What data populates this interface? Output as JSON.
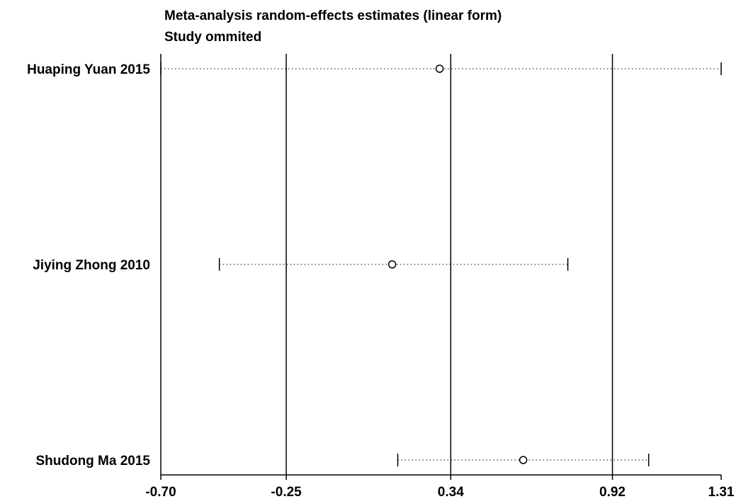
{
  "chart_data": {
    "type": "forest",
    "title": "Meta-analysis random-effects estimates (linear form)",
    "subtitle": "Study ommited",
    "xlim": [
      -0.7,
      1.31
    ],
    "x_ticks": [
      -0.7,
      -0.25,
      0.34,
      0.92,
      1.31
    ],
    "x_tick_labels": [
      "-0.70",
      "-0.25",
      "0.34",
      "0.92",
      "1.31"
    ],
    "reference_lines": [
      -0.25,
      0.34,
      0.92
    ],
    "studies": [
      {
        "label": "Huaping Yuan 2015",
        "estimate": 0.3,
        "lower": -0.7,
        "upper": 1.31
      },
      {
        "label": "Jiying Zhong 2010",
        "estimate": 0.13,
        "lower": -0.49,
        "upper": 0.76
      },
      {
        "label": "Shudong Ma 2015",
        "estimate": 0.6,
        "lower": 0.15,
        "upper": 1.05
      }
    ]
  }
}
